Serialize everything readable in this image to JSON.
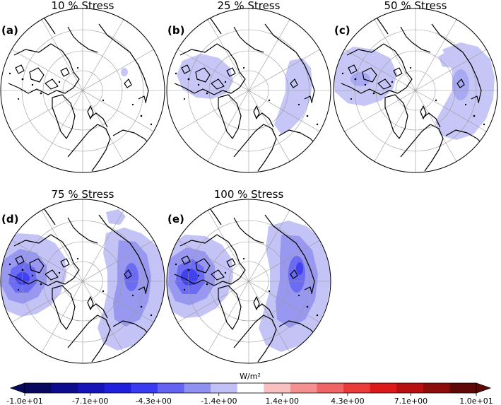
{
  "chart_data": {
    "type": "heatmap",
    "projection": "north-polar-stereographic",
    "panels": [
      {
        "label": "(a)",
        "title": "10 % Stress"
      },
      {
        "label": "(b)",
        "title": "25 % Stress"
      },
      {
        "label": "(c)",
        "title": "50 % Stress"
      },
      {
        "label": "(d)",
        "title": "75 % Stress"
      },
      {
        "label": "(e)",
        "title": "100 % Stress"
      }
    ],
    "colorbar": {
      "unit": "W/m²",
      "range": [
        -10,
        10
      ],
      "extend": "both",
      "tick_labels": [
        "-1.0e+01",
        "-7.1e+00",
        "-4.3e+00",
        "-1.4e+00",
        "1.4e+00",
        "4.3e+00",
        "7.1e+00",
        "1.0e+01"
      ],
      "colors": [
        "#08085e",
        "#0c0c8c",
        "#1414b8",
        "#2020dc",
        "#3a3af0",
        "#6464f2",
        "#9090f0",
        "#c0c0f6",
        "#ffffff",
        "#f8c0c0",
        "#f49090",
        "#ef6464",
        "#ea3a3a",
        "#dc1a1a",
        "#b81010",
        "#8c0c0c",
        "#5e0808"
      ]
    }
  }
}
